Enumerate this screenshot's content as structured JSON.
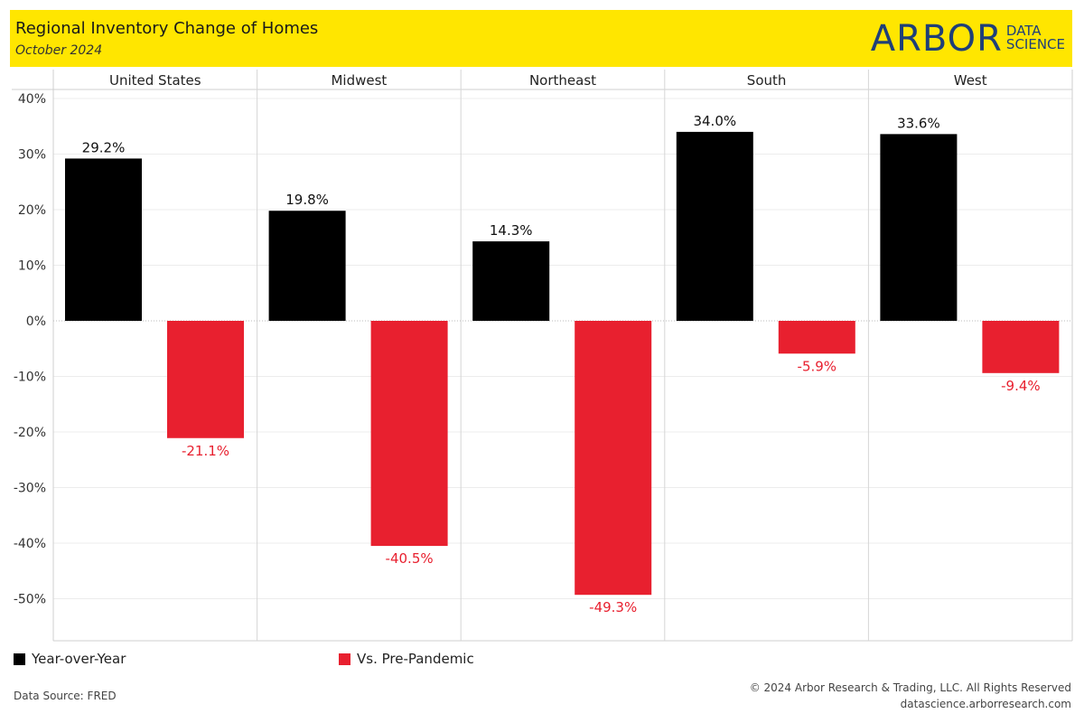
{
  "header": {
    "title": "Regional Inventory Change of Homes",
    "subtitle": "October 2024",
    "logo_main": "ARBOR",
    "logo_line1": "DATA",
    "logo_line2": "SCIENCE"
  },
  "chart_data": {
    "type": "bar",
    "categories": [
      "United States",
      "Midwest",
      "Northeast",
      "South",
      "West"
    ],
    "series": [
      {
        "name": "Year-over-Year",
        "values": [
          29.2,
          19.8,
          14.3,
          34.0,
          33.6
        ],
        "color": "#000000"
      },
      {
        "name": "Vs. Pre-Pandemic",
        "values": [
          -21.1,
          -40.5,
          -49.3,
          -5.9,
          -9.4
        ],
        "color": "#e8202f"
      }
    ],
    "data_labels": [
      [
        "29.2%",
        "19.8%",
        "14.3%",
        "34.0%",
        "33.6%"
      ],
      [
        "-21.1%",
        "-40.5%",
        "-49.3%",
        "-5.9%",
        "-9.4%"
      ]
    ],
    "ylim": [
      -55,
      40
    ],
    "yticks": [
      40,
      30,
      20,
      10,
      0,
      -10,
      -20,
      -30,
      -40,
      -50
    ],
    "ytick_labels": [
      "40%",
      "30%",
      "20%",
      "10%",
      "0%",
      "-10%",
      "-20%",
      "-30%",
      "-40%",
      "-50%"
    ],
    "grid": true,
    "legend_position": "bottom-left"
  },
  "legend": {
    "items": [
      {
        "label": "Year-over-Year",
        "color": "#000000"
      },
      {
        "label": "Vs. Pre-Pandemic",
        "color": "#e8202f"
      }
    ]
  },
  "footer": {
    "source": "Data Source: FRED",
    "copyright": "© 2024 Arbor Research & Trading, LLC. All Rights Reserved",
    "website": "datascience.arborresearch.com"
  }
}
